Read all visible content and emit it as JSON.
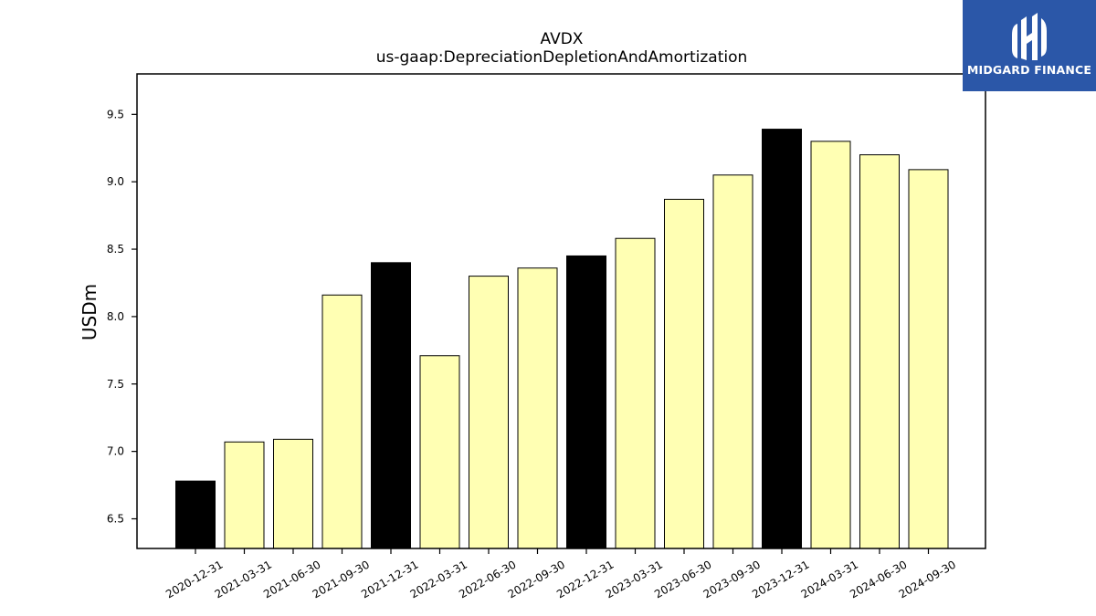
{
  "chart_data": {
    "type": "bar",
    "title": "AVDX",
    "subtitle": "us-gaap:DepreciationDepletionAndAmortization",
    "xlabel": "",
    "ylabel": "USDm",
    "ylim": [
      6.28,
      9.8
    ],
    "yticks": [
      "6.5",
      "7.0",
      "7.5",
      "8.0",
      "8.5",
      "9.0",
      "9.5"
    ],
    "grid": false,
    "categories": [
      "2020-12-31",
      "2021-03-31",
      "2021-06-30",
      "2021-09-30",
      "2021-12-31",
      "2022-03-31",
      "2022-06-30",
      "2022-09-30",
      "2022-12-31",
      "2023-03-31",
      "2023-06-30",
      "2023-09-30",
      "2023-12-31",
      "2024-03-31",
      "2024-06-30",
      "2024-09-30"
    ],
    "values": [
      6.78,
      7.07,
      7.09,
      8.16,
      8.4,
      7.71,
      8.3,
      8.36,
      8.45,
      8.58,
      8.87,
      9.05,
      9.39,
      9.3,
      9.2,
      9.09
    ],
    "annual_flags": [
      true,
      false,
      false,
      false,
      true,
      false,
      false,
      false,
      true,
      false,
      false,
      false,
      true,
      false,
      false,
      false
    ],
    "colors": {
      "annual": "#000000",
      "quarterly": "#ffffb3",
      "edge": "#000000"
    }
  },
  "logo": {
    "text": "MIDGARD FINANCE",
    "background": "#2b57a8"
  }
}
